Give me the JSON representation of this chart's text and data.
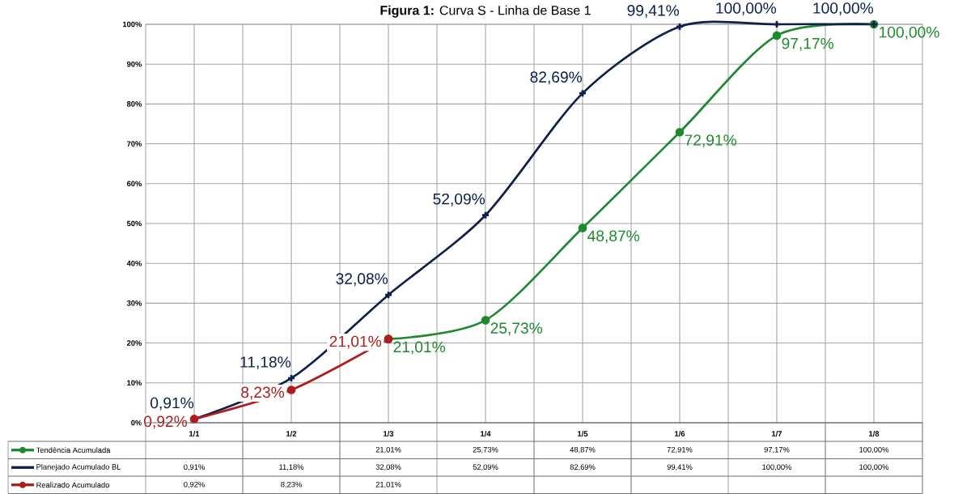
{
  "chart_data": {
    "type": "line",
    "title": "**Figura 1:** Curva S - Linha de Base 1",
    "categories": [
      "1/1",
      "1/2",
      "1/3",
      "1/4",
      "1/5",
      "1/6",
      "1/7",
      "1/8"
    ],
    "series": [
      {
        "name": "Tendência Acumulada",
        "color": "#1e8a2e",
        "marker": "circle",
        "values": [
          null,
          null,
          21.01,
          25.73,
          48.87,
          72.91,
          97.17,
          100.0
        ],
        "value_labels": [
          null,
          null,
          "21,01%",
          "25,73%",
          "48,87%",
          "72,91%",
          "97,17%",
          "100,00%"
        ]
      },
      {
        "name": "Planejado Acumulado BL",
        "color": "#0d1f4a",
        "marker": "cross",
        "values": [
          0.91,
          11.18,
          32.08,
          52.09,
          82.69,
          99.41,
          100.0,
          100.0
        ],
        "value_labels": [
          "0,91%",
          "11,18%",
          "32,08%",
          "52,09%",
          "82,69%",
          "99,41%",
          "100,00%",
          "100,00%"
        ]
      },
      {
        "name": "Realizado Acumulado",
        "color": "#b01c1c",
        "marker": "circle",
        "values": [
          0.92,
          8.23,
          21.01,
          null,
          null,
          null,
          null,
          null
        ],
        "value_labels": [
          "0,92%",
          "8,23%",
          "21,01%",
          null,
          null,
          null,
          null,
          null
        ]
      }
    ],
    "ylim": [
      0,
      100
    ],
    "yticks": [
      {
        "value": 0,
        "label": "0%"
      },
      {
        "value": 10,
        "label": "10%"
      },
      {
        "value": 20,
        "label": "20%"
      },
      {
        "value": 30,
        "label": "30%"
      },
      {
        "value": 40,
        "label": "40%"
      },
      {
        "value": 50,
        "label": "50%"
      },
      {
        "value": 60,
        "label": "60%"
      },
      {
        "value": 70,
        "label": "70%"
      },
      {
        "value": 80,
        "label": "80%"
      },
      {
        "value": 90,
        "label": "90%"
      },
      {
        "value": 100,
        "label": "100%"
      }
    ],
    "grid": true,
    "legend": "bottom"
  }
}
